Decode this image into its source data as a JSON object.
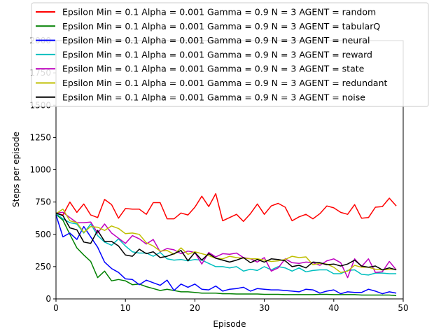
{
  "chart_data": {
    "type": "line",
    "xlabel": "Episode",
    "ylabel": "Steps per episode",
    "xlim": [
      0,
      50
    ],
    "ylim": [
      0,
      2000
    ],
    "xticks": [
      0,
      10,
      20,
      30,
      40,
      50
    ],
    "yticks": [
      0,
      250,
      500,
      750,
      1000,
      1250,
      1500,
      1750,
      2000
    ],
    "grid": false,
    "legend_position": "top",
    "x": [
      0,
      1,
      2,
      3,
      4,
      5,
      6,
      7,
      8,
      9,
      10,
      11,
      12,
      13,
      14,
      15,
      16,
      17,
      18,
      19,
      20,
      21,
      22,
      23,
      24,
      25,
      26,
      27,
      28,
      29,
      30,
      31,
      32,
      33,
      34,
      35,
      36,
      37,
      38,
      39,
      40,
      41,
      42,
      43,
      44,
      45,
      46,
      47,
      48,
      49
    ],
    "series": [
      {
        "name": "Epsilon Min = 0.1 Alpha = 0.001 Gamma = 0.9 N = 3 AGENT = random",
        "color": "#ff0000",
        "values": [
          660,
          650,
          750,
          670,
          735,
          650,
          630,
          770,
          730,
          625,
          700,
          695,
          695,
          655,
          745,
          745,
          620,
          620,
          665,
          650,
          710,
          795,
          715,
          815,
          605,
          630,
          655,
          600,
          660,
          735,
          655,
          720,
          740,
          710,
          605,
          635,
          655,
          620,
          660,
          720,
          705,
          670,
          655,
          730,
          625,
          630,
          710,
          715,
          780,
          720
        ]
      },
      {
        "name": "Epsilon Min = 0.1 Alpha = 0.001 Gamma = 0.9 N = 3 AGENT = tabularQ",
        "color": "#008000",
        "values": [
          655,
          610,
          500,
          395,
          340,
          290,
          165,
          215,
          140,
          150,
          140,
          110,
          115,
          95,
          80,
          65,
          75,
          65,
          55,
          55,
          50,
          45,
          45,
          45,
          40,
          40,
          38,
          38,
          38,
          38,
          35,
          35,
          35,
          33,
          33,
          33,
          33,
          33,
          35,
          35,
          33,
          33,
          33,
          33,
          30,
          30,
          30,
          30,
          30,
          25
        ]
      },
      {
        "name": "Epsilon Min = 0.1 Alpha = 0.001 Gamma = 0.9 N = 3 AGENT = neural",
        "color": "#0000ff",
        "values": [
          650,
          480,
          510,
          460,
          560,
          480,
          400,
          285,
          235,
          205,
          155,
          150,
          110,
          145,
          125,
          105,
          145,
          65,
          115,
          90,
          115,
          75,
          70,
          100,
          60,
          75,
          80,
          90,
          60,
          80,
          75,
          70,
          70,
          65,
          60,
          55,
          75,
          70,
          45,
          60,
          70,
          40,
          55,
          50,
          50,
          75,
          60,
          40,
          55,
          45
        ]
      },
      {
        "name": "Epsilon Min = 0.1 Alpha = 0.001 Gamma = 0.9 N = 3 AGENT = reward",
        "color": "#00bfbf",
        "values": [
          660,
          620,
          590,
          580,
          510,
          580,
          490,
          440,
          415,
          465,
          410,
          365,
          355,
          355,
          330,
          360,
          310,
          300,
          305,
          295,
          305,
          300,
          275,
          250,
          250,
          240,
          250,
          215,
          230,
          220,
          250,
          225,
          250,
          240,
          215,
          240,
          210,
          220,
          225,
          225,
          195,
          195,
          220,
          225,
          190,
          185,
          200,
          200,
          195,
          195
        ]
      },
      {
        "name": "Epsilon Min = 0.1 Alpha = 0.001 Gamma = 0.9 N = 3 AGENT = state",
        "color": "#bf00bf",
        "values": [
          665,
          670,
          630,
          590,
          590,
          595,
          510,
          580,
          510,
          470,
          430,
          490,
          465,
          425,
          460,
          365,
          390,
          380,
          350,
          370,
          360,
          270,
          360,
          325,
          350,
          345,
          355,
          320,
          310,
          285,
          320,
          215,
          240,
          310,
          280,
          275,
          285,
          280,
          260,
          295,
          310,
          280,
          165,
          310,
          250,
          310,
          205,
          210,
          290,
          225
        ]
      },
      {
        "name": "Epsilon Min = 0.1 Alpha = 0.001 Gamma = 0.9 N = 3 AGENT = redundant",
        "color": "#bfbf00",
        "values": [
          660,
          695,
          605,
          590,
          515,
          560,
          555,
          530,
          565,
          545,
          505,
          510,
          500,
          435,
          410,
          370,
          375,
          345,
          395,
          345,
          365,
          350,
          335,
          315,
          310,
          330,
          320,
          315,
          310,
          310,
          300,
          290,
          295,
          305,
          330,
          320,
          325,
          265,
          275,
          270,
          245,
          205,
          215,
          260,
          245,
          245,
          230,
          225,
          230,
          230
        ]
      },
      {
        "name": "Epsilon Min = 0.1 Alpha = 0.001 Gamma = 0.9 N = 3 AGENT = noise",
        "color": "#000000",
        "values": [
          665,
          645,
          550,
          535,
          440,
          430,
          530,
          445,
          445,
          410,
          340,
          330,
          385,
          350,
          365,
          320,
          330,
          350,
          375,
          295,
          360,
          300,
          350,
          315,
          300,
          285,
          300,
          320,
          280,
          305,
          285,
          310,
          305,
          295,
          250,
          260,
          240,
          285,
          280,
          265,
          270,
          255,
          270,
          300,
          255,
          245,
          255,
          225,
          240,
          225
        ]
      }
    ]
  }
}
